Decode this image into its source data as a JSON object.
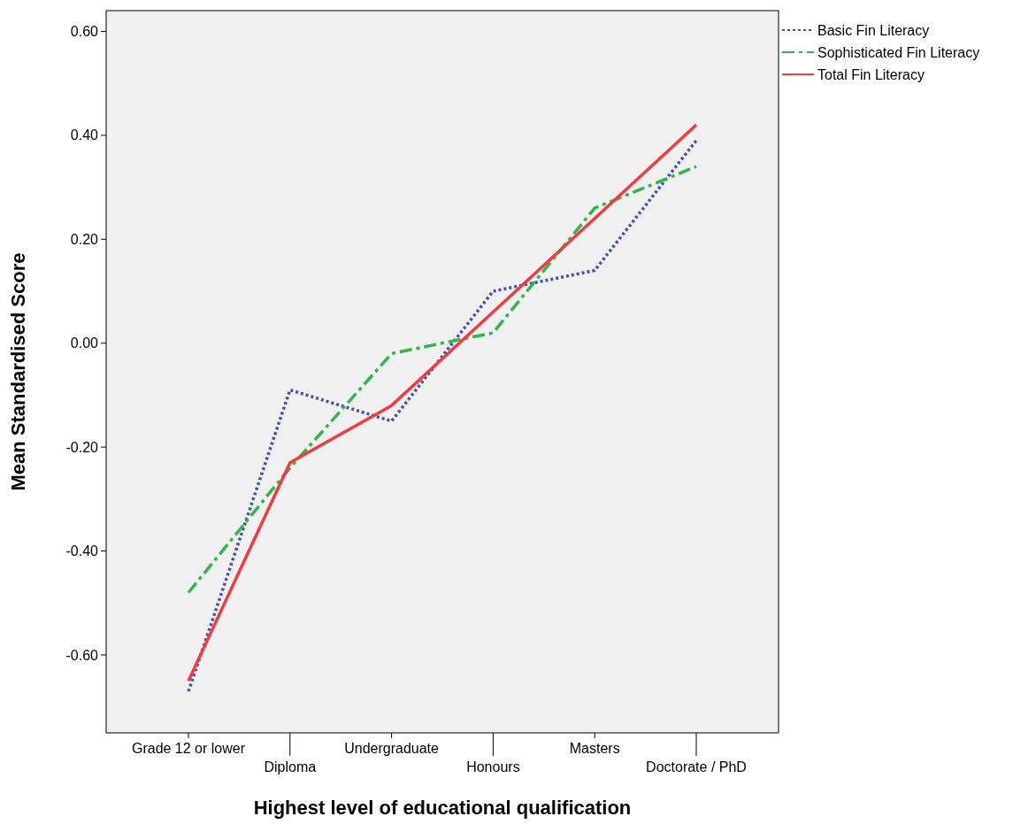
{
  "chart_data": {
    "type": "line",
    "xlabel": "Highest level of educational qualification",
    "ylabel": "Mean Standardised Score",
    "categories": [
      "Grade 12 or lower",
      "Diploma",
      "Undergraduate",
      "Honours",
      "Masters",
      "Doctorate / PhD"
    ],
    "series": [
      {
        "name": "Basic Fin Literacy",
        "color": "#3f51b5",
        "line_style": "dotted",
        "values": [
          -0.67,
          -0.09,
          -0.15,
          0.1,
          0.14,
          0.39
        ]
      },
      {
        "name": "Sophisticated Fin Literacy",
        "color": "#2fb84a",
        "line_style": "dashed",
        "values": [
          -0.48,
          -0.24,
          -0.02,
          0.02,
          0.26,
          0.34
        ]
      },
      {
        "name": "Total Fin Literacy",
        "color": "#f03c3c",
        "line_style": "solid",
        "values": [
          -0.65,
          -0.23,
          -0.12,
          0.06,
          0.24,
          0.42
        ]
      }
    ],
    "ylim": [
      -0.75,
      0.64
    ],
    "yticks": [
      {
        "value": -0.6,
        "label": "-0.60"
      },
      {
        "value": -0.4,
        "label": "-0.40"
      },
      {
        "value": -0.2,
        "label": "-0.20"
      },
      {
        "value": 0,
        "label": "0.00"
      },
      {
        "value": 0.2,
        "label": "0.20"
      },
      {
        "value": 0.4,
        "label": "0.40"
      },
      {
        "value": 0.6,
        "label": "0.60"
      }
    ],
    "grid": false,
    "legend": "top right",
    "marker": "none"
  }
}
